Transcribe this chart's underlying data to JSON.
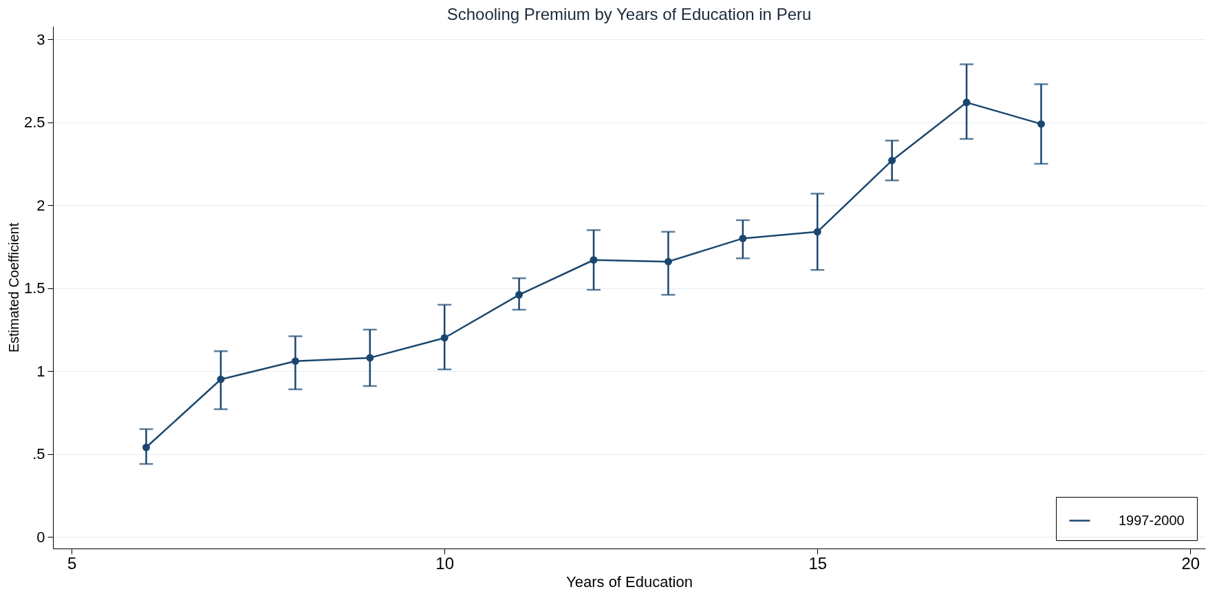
{
  "chart_data": {
    "type": "line",
    "title": "Schooling Premium by Years of Education in Peru",
    "xlabel": "Years of Education",
    "ylabel": "Estimated Coefficient",
    "x": [
      6,
      7,
      8,
      9,
      10,
      11,
      12,
      13,
      14,
      15,
      16,
      17,
      18
    ],
    "series": [
      {
        "name": "1997-2000",
        "color": "#1a476f",
        "values": [
          0.54,
          0.95,
          1.06,
          1.08,
          1.2,
          1.46,
          1.67,
          1.66,
          1.8,
          1.84,
          2.27,
          2.62,
          2.49
        ],
        "errors": [
          [
            0.44,
            0.65
          ],
          [
            0.77,
            1.12
          ],
          [
            0.89,
            1.21
          ],
          [
            0.91,
            1.25
          ],
          [
            1.01,
            1.4
          ],
          [
            1.37,
            1.56
          ],
          [
            1.49,
            1.85
          ],
          [
            1.46,
            1.84
          ],
          [
            1.68,
            1.91
          ],
          [
            1.61,
            2.07
          ],
          [
            2.15,
            2.39
          ],
          [
            2.4,
            2.85
          ],
          [
            2.25,
            2.73
          ]
        ]
      }
    ],
    "xlim": [
      4.75,
      20.2
    ],
    "xticks": [
      5,
      10,
      15,
      20
    ],
    "ylim": [
      -0.07,
      3.08
    ],
    "yticks": [
      0,
      {
        "value": 0.5,
        "label": ".5"
      },
      1,
      1.5,
      2,
      2.5,
      3
    ],
    "grid": "y",
    "legend": "bottom right",
    "marker": "circle",
    "line_style": "solid"
  }
}
